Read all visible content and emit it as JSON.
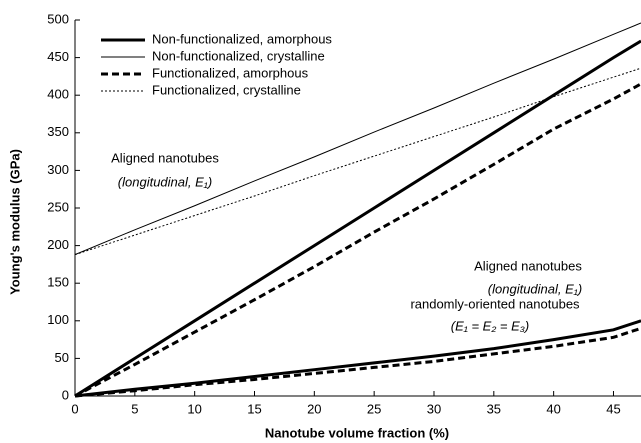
{
  "chart_data": {
    "type": "line",
    "x_label": "Nanotube volume fraction (%)",
    "y_label": "Young's modulus (GPa)",
    "x": [
      0,
      5,
      10,
      15,
      20,
      25,
      30,
      35,
      40,
      45,
      47.3
    ],
    "xlim": [
      0,
      47.3
    ],
    "ylim": [
      0,
      500
    ],
    "xticks": [
      0,
      5,
      10,
      15,
      20,
      25,
      30,
      35,
      40,
      45
    ],
    "yticks": [
      0,
      50,
      100,
      150,
      200,
      250,
      300,
      350,
      400,
      450,
      500
    ],
    "legend": "upper left",
    "series": [
      {
        "name": "Non-functionalized, amorphous",
        "color": "#000000",
        "width": 3,
        "dash": "solid",
        "curves": [
          [
            0,
            50,
            100,
            150,
            200,
            250,
            300,
            350,
            400,
            450,
            472
          ],
          [
            0,
            9,
            17,
            26,
            35,
            44,
            53,
            63,
            75,
            88,
            100
          ]
        ]
      },
      {
        "name": "Non-functionalized, crystalline",
        "color": "#000000",
        "width": 1,
        "dash": "solid",
        "curves": [
          [
            188,
            221,
            253,
            286,
            318,
            351,
            383,
            416,
            448,
            481,
            496
          ]
        ]
      },
      {
        "name": "Functionalized, amorphous",
        "color": "#000000",
        "width": 3,
        "dash": "dashed",
        "curves": [
          [
            0,
            42,
            85,
            128,
            172,
            218,
            262,
            308,
            355,
            395,
            415
          ],
          [
            0,
            7,
            15,
            22,
            30,
            38,
            46,
            56,
            66,
            78,
            90
          ]
        ]
      },
      {
        "name": "Functionalized, crystalline",
        "color": "#000000",
        "width": 1,
        "dash": "dotted",
        "curves": [
          [
            188,
            214,
            240,
            266,
            293,
            319,
            345,
            371,
            398,
            424,
            436
          ]
        ]
      }
    ],
    "annotations": [
      "Aligned nanotubes",
      "(longitudinal, E₁)",
      "Aligned nanotubes",
      "(longitudinal, E₁)",
      "randomly-oriented nanotubes",
      "(E₁ = E₂ = E₃)"
    ]
  }
}
